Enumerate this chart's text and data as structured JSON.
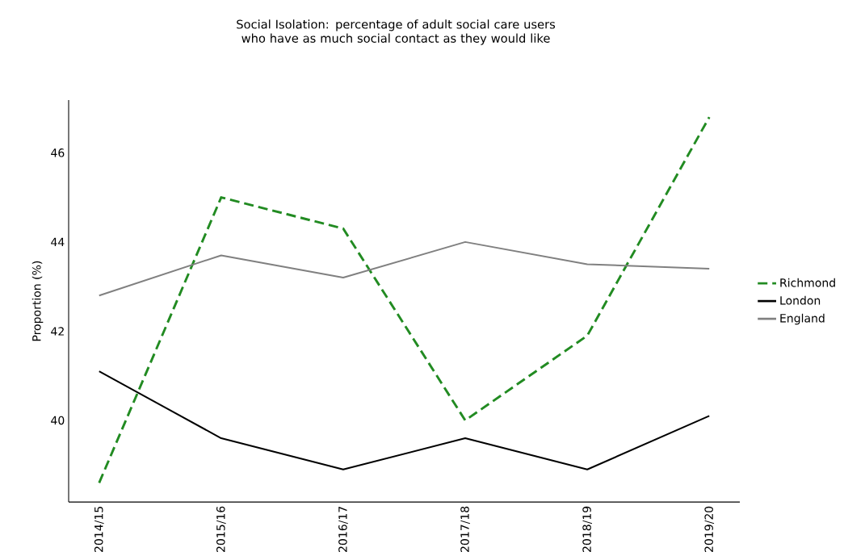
{
  "chart_data": {
    "type": "line",
    "title": "Social Isolation: percentage of adult social care users who have as much social contact as they would like",
    "ylabel": "Proportion (%)",
    "categories": [
      "2014/15",
      "2015/16",
      "2016/17",
      "2017/18",
      "2018/19",
      "2019/20"
    ],
    "series": [
      {
        "name": "Richmond",
        "color": "#228b22",
        "line_style": "dashed",
        "values": [
          38.6,
          45.0,
          44.3,
          40.0,
          41.9,
          46.8
        ]
      },
      {
        "name": "London",
        "color": "#000000",
        "values": [
          41.1,
          39.6,
          38.9,
          39.6,
          38.9,
          40.1
        ]
      },
      {
        "name": "England",
        "color": "#808080",
        "values": [
          42.8,
          43.7,
          43.2,
          44.0,
          43.5,
          43.4
        ]
      }
    ],
    "ylim": [
      38.17,
      47.18
    ],
    "yticks": [
      40,
      42,
      44,
      46
    ],
    "legend": "right",
    "line_style": "solid",
    "marker": "none"
  }
}
